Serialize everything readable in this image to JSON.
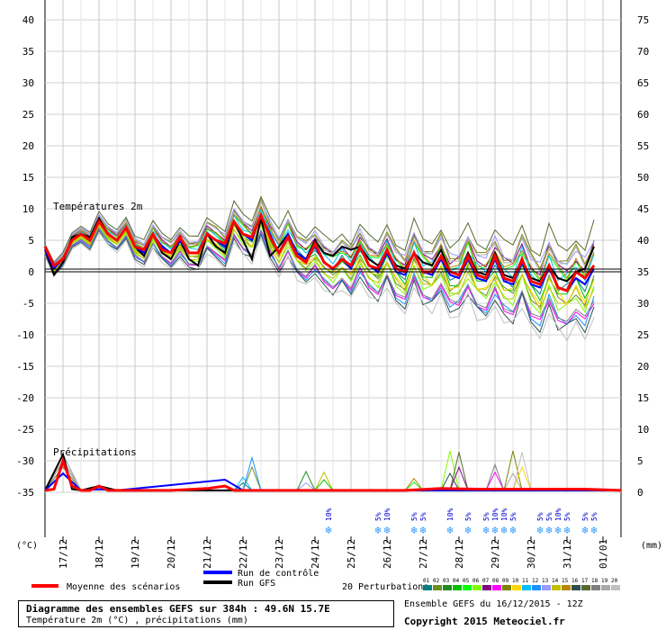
{
  "chart_data": {
    "type": "line",
    "title": "Diagramme des ensembles GEFS sur 384h : 49.6N 15.7E",
    "subtitle": "Température 2m (°C) , précipitations (mm)",
    "panel_temperature_label": "Températures 2m",
    "panel_precip_label": "Précipitations",
    "left_unit": "(°C)",
    "right_unit": "(mm)",
    "y_left_ticks": [
      40,
      35,
      30,
      25,
      20,
      15,
      10,
      5,
      0,
      -5,
      -10,
      -15,
      -20,
      -25,
      -30,
      -35
    ],
    "y_right_ticks": [
      75,
      70,
      65,
      60,
      55,
      50,
      45,
      40,
      35,
      30,
      25,
      20,
      15,
      10,
      5,
      0
    ],
    "ylim_temperature": [
      -35,
      40
    ],
    "ylim_precip_mm": [
      0,
      75
    ],
    "x_start_step_h": 0,
    "x_end_step_h": 384,
    "date_labels": [
      {
        "label": "17/12",
        "t": 12
      },
      {
        "label": "18/12",
        "t": 36
      },
      {
        "label": "19/12",
        "t": 60
      },
      {
        "label": "20/12",
        "t": 84
      },
      {
        "label": "21/12",
        "t": 108
      },
      {
        "label": "22/12",
        "t": 132
      },
      {
        "label": "23/12",
        "t": 156
      },
      {
        "label": "24/12",
        "t": 180
      },
      {
        "label": "25/12",
        "t": 204
      },
      {
        "label": "26/12",
        "t": 228
      },
      {
        "label": "27/12",
        "t": 252
      },
      {
        "label": "28/12",
        "t": 276
      },
      {
        "label": "29/12",
        "t": 300
      },
      {
        "label": "30/12",
        "t": 324
      },
      {
        "label": "31/12",
        "t": 348
      },
      {
        "label": "01/01",
        "t": 372
      }
    ],
    "snow_probabilities": [
      {
        "t": 189,
        "label": "10%"
      },
      {
        "t": 222,
        "label": "5%"
      },
      {
        "t": 228,
        "label": "10%"
      },
      {
        "t": 246,
        "label": "5%"
      },
      {
        "t": 252,
        "label": "5%"
      },
      {
        "t": 270,
        "label": "10%"
      },
      {
        "t": 282,
        "label": "5%"
      },
      {
        "t": 294,
        "label": "5%"
      },
      {
        "t": 300,
        "label": "10%"
      },
      {
        "t": 306,
        "label": "10%"
      },
      {
        "t": 312,
        "label": "5%"
      },
      {
        "t": 330,
        "label": "5%"
      },
      {
        "t": 336,
        "label": "5%"
      },
      {
        "t": 342,
        "label": "10%"
      },
      {
        "t": 348,
        "label": "5%"
      },
      {
        "t": 360,
        "label": "5%"
      },
      {
        "t": 366,
        "label": "5%"
      }
    ],
    "series": [
      {
        "name": "Moyenne des scénarios",
        "color": "#ff0000",
        "temperature": [
          [
            0,
            4
          ],
          [
            6,
            1
          ],
          [
            12,
            2
          ],
          [
            18,
            5
          ],
          [
            24,
            6
          ],
          [
            30,
            5
          ],
          [
            36,
            8
          ],
          [
            42,
            6
          ],
          [
            48,
            5
          ],
          [
            54,
            7
          ],
          [
            60,
            4
          ],
          [
            66,
            3.5
          ],
          [
            72,
            6
          ],
          [
            78,
            3.5
          ],
          [
            84,
            3
          ],
          [
            90,
            5.5
          ],
          [
            96,
            3
          ],
          [
            102,
            3
          ],
          [
            108,
            6
          ],
          [
            114,
            5
          ],
          [
            120,
            4.5
          ],
          [
            126,
            8
          ],
          [
            132,
            6
          ],
          [
            138,
            5.5
          ],
          [
            144,
            9
          ],
          [
            150,
            5.5
          ],
          [
            156,
            3
          ],
          [
            162,
            5.5
          ],
          [
            168,
            2.5
          ],
          [
            174,
            1.5
          ],
          [
            180,
            4.5
          ],
          [
            186,
            1.5
          ],
          [
            192,
            0.5
          ],
          [
            198,
            2
          ],
          [
            204,
            1
          ],
          [
            210,
            4
          ],
          [
            216,
            1
          ],
          [
            222,
            0.5
          ],
          [
            228,
            3.5
          ],
          [
            234,
            0.5
          ],
          [
            240,
            0
          ],
          [
            246,
            3
          ],
          [
            252,
            0
          ],
          [
            258,
            0
          ],
          [
            264,
            2.5
          ],
          [
            270,
            0
          ],
          [
            276,
            -0.5
          ],
          [
            282,
            2.5
          ],
          [
            288,
            -0.5
          ],
          [
            294,
            -1
          ],
          [
            300,
            2.5
          ],
          [
            306,
            -1
          ],
          [
            312,
            -1.5
          ],
          [
            318,
            2
          ],
          [
            324,
            -1.5
          ],
          [
            330,
            -2
          ],
          [
            336,
            1
          ],
          [
            342,
            -2.5
          ],
          [
            348,
            -3
          ],
          [
            354,
            0
          ],
          [
            360,
            -1
          ],
          [
            366,
            1
          ]
        ],
        "precip_mm": [
          [
            0,
            0.3
          ],
          [
            6,
            0.5
          ],
          [
            12,
            5
          ],
          [
            18,
            1
          ],
          [
            24,
            0.3
          ],
          [
            30,
            0.3
          ],
          [
            36,
            1
          ],
          [
            42,
            0.3
          ],
          [
            48,
            0.3
          ],
          [
            60,
            0.3
          ],
          [
            84,
            0.3
          ],
          [
            108,
            0.6
          ],
          [
            120,
            1
          ],
          [
            126,
            0.3
          ],
          [
            132,
            0.3
          ],
          [
            144,
            0.3
          ],
          [
            168,
            0.3
          ],
          [
            192,
            0.3
          ],
          [
            216,
            0.3
          ],
          [
            240,
            0.3
          ],
          [
            264,
            0.6
          ],
          [
            288,
            0.5
          ],
          [
            312,
            0.5
          ],
          [
            336,
            0.5
          ],
          [
            360,
            0.5
          ],
          [
            384,
            0.3
          ]
        ]
      },
      {
        "name": "Run de contrôle",
        "color": "#0000ff",
        "temperature": [
          [
            0,
            3.5
          ],
          [
            6,
            0.5
          ],
          [
            12,
            2
          ],
          [
            18,
            5
          ],
          [
            24,
            6
          ],
          [
            30,
            5
          ],
          [
            36,
            8
          ],
          [
            42,
            6
          ],
          [
            48,
            5
          ],
          [
            54,
            7
          ],
          [
            60,
            4
          ],
          [
            66,
            3
          ],
          [
            72,
            6
          ],
          [
            78,
            4
          ],
          [
            84,
            3
          ],
          [
            90,
            5
          ],
          [
            96,
            3
          ],
          [
            102,
            3
          ],
          [
            108,
            6
          ],
          [
            114,
            5
          ],
          [
            120,
            4
          ],
          [
            126,
            8
          ],
          [
            132,
            6
          ],
          [
            138,
            5
          ],
          [
            144,
            9
          ],
          [
            150,
            6
          ],
          [
            156,
            3
          ],
          [
            162,
            6
          ],
          [
            168,
            3
          ],
          [
            174,
            2
          ],
          [
            180,
            4
          ],
          [
            186,
            1.5
          ],
          [
            192,
            0.5
          ],
          [
            198,
            2
          ],
          [
            204,
            0.5
          ],
          [
            210,
            4
          ],
          [
            216,
            1
          ],
          [
            222,
            0
          ],
          [
            228,
            3
          ],
          [
            234,
            0
          ],
          [
            240,
            -0.5
          ],
          [
            246,
            3
          ],
          [
            252,
            0
          ],
          [
            258,
            -0.5
          ],
          [
            264,
            2
          ],
          [
            270,
            -0.5
          ],
          [
            276,
            -1
          ],
          [
            282,
            2
          ],
          [
            288,
            -1
          ],
          [
            294,
            -1.5
          ],
          [
            300,
            2
          ],
          [
            306,
            -1.5
          ],
          [
            312,
            -2
          ],
          [
            318,
            1.5
          ],
          [
            324,
            -2
          ],
          [
            330,
            -2.5
          ],
          [
            336,
            0.5
          ],
          [
            342,
            -2.5
          ],
          [
            348,
            -3
          ],
          [
            354,
            -1
          ],
          [
            360,
            -2
          ],
          [
            366,
            0.5
          ]
        ],
        "precip_mm": [
          [
            0,
            0.3
          ],
          [
            12,
            3
          ],
          [
            24,
            0.3
          ],
          [
            36,
            0.5
          ],
          [
            48,
            0.3
          ],
          [
            120,
            2
          ],
          [
            132,
            0.3
          ],
          [
            384,
            0.3
          ]
        ]
      },
      {
        "name": "Run GFS",
        "color": "#000000",
        "temperature": [
          [
            0,
            3.5
          ],
          [
            6,
            -0.5
          ],
          [
            12,
            1.5
          ],
          [
            18,
            5.5
          ],
          [
            24,
            6
          ],
          [
            30,
            5.5
          ],
          [
            36,
            8.5
          ],
          [
            42,
            6
          ],
          [
            48,
            5
          ],
          [
            54,
            7
          ],
          [
            60,
            4
          ],
          [
            66,
            2.5
          ],
          [
            72,
            6
          ],
          [
            78,
            3
          ],
          [
            84,
            2
          ],
          [
            90,
            5
          ],
          [
            96,
            2
          ],
          [
            102,
            1
          ],
          [
            108,
            6
          ],
          [
            114,
            4
          ],
          [
            120,
            3
          ],
          [
            126,
            8
          ],
          [
            132,
            5
          ],
          [
            138,
            2
          ],
          [
            144,
            8.5
          ],
          [
            150,
            2.5
          ],
          [
            156,
            4
          ],
          [
            162,
            6
          ],
          [
            168,
            3
          ],
          [
            174,
            2
          ],
          [
            180,
            5
          ],
          [
            186,
            3
          ],
          [
            192,
            2.5
          ],
          [
            198,
            4
          ],
          [
            204,
            3.5
          ],
          [
            210,
            4
          ],
          [
            216,
            2
          ],
          [
            222,
            1
          ],
          [
            228,
            3
          ],
          [
            234,
            1
          ],
          [
            240,
            0.5
          ],
          [
            246,
            3
          ],
          [
            252,
            1.5
          ],
          [
            258,
            1
          ],
          [
            264,
            3.5
          ],
          [
            270,
            0
          ],
          [
            276,
            -0.5
          ],
          [
            282,
            3
          ],
          [
            288,
            0
          ],
          [
            294,
            -0.5
          ],
          [
            300,
            3
          ],
          [
            306,
            -0.5
          ],
          [
            312,
            -1
          ],
          [
            318,
            2
          ],
          [
            324,
            -1
          ],
          [
            330,
            -1.5
          ],
          [
            336,
            1
          ],
          [
            342,
            -1
          ],
          [
            348,
            -1.5
          ],
          [
            354,
            0
          ],
          [
            360,
            0.5
          ],
          [
            366,
            4
          ]
        ],
        "precip_mm": [
          [
            0,
            0.3
          ],
          [
            12,
            6
          ],
          [
            18,
            0.5
          ],
          [
            24,
            0.3
          ],
          [
            36,
            1
          ],
          [
            48,
            0.3
          ],
          [
            384,
            0.3
          ]
        ]
      }
    ],
    "perturbations_label": "20 Perturbations",
    "perturbations": [
      {
        "id": "01",
        "color": "#008080"
      },
      {
        "id": "02",
        "color": "#6b8e23"
      },
      {
        "id": "03",
        "color": "#228b22"
      },
      {
        "id": "04",
        "color": "#00c000"
      },
      {
        "id": "05",
        "color": "#00ff00"
      },
      {
        "id": "06",
        "color": "#7fff00"
      },
      {
        "id": "07",
        "color": "#800080"
      },
      {
        "id": "08",
        "color": "#ff00ff"
      },
      {
        "id": "09",
        "color": "#808000"
      },
      {
        "id": "10",
        "color": "#ffd700"
      },
      {
        "id": "11",
        "color": "#00bfff"
      },
      {
        "id": "12",
        "color": "#1e90ff"
      },
      {
        "id": "13",
        "color": "#9999ff"
      },
      {
        "id": "14",
        "color": "#c0c000"
      },
      {
        "id": "15",
        "color": "#b8860b"
      },
      {
        "id": "16",
        "color": "#2f4f4f"
      },
      {
        "id": "17",
        "color": "#556b2f"
      },
      {
        "id": "18",
        "color": "#808080"
      },
      {
        "id": "19",
        "color": "#a9a9a9"
      },
      {
        "id": "20",
        "color": "#c0c0c0"
      }
    ],
    "perturbation_envelope": {
      "temperature_offsets": [
        0,
        -1,
        0.5,
        -0.5,
        1,
        -1.5,
        1.5,
        -2,
        2,
        -0.8,
        0.8,
        -2.5,
        2.5,
        -1.2,
        1.2,
        -3,
        3,
        -1.8,
        1.8,
        -3.5
      ],
      "precip_extra_peaks": [
        [
          132,
          3
        ],
        [
          138,
          5
        ],
        [
          174,
          3
        ],
        [
          186,
          4
        ],
        [
          246,
          2
        ],
        [
          270,
          6
        ],
        [
          276,
          8
        ],
        [
          300,
          4
        ],
        [
          312,
          6
        ],
        [
          318,
          8
        ]
      ]
    },
    "grid": true
  },
  "legend": {
    "mean_label": "Moyenne des scénarios",
    "control_label": "Run de contrôle",
    "gfs_label": "Run GFS"
  },
  "footer": {
    "ensemble_run": "Ensemble GEFS du 16/12/2015 - 12Z",
    "copyright": "Copyright 2015 Meteociel.fr"
  }
}
